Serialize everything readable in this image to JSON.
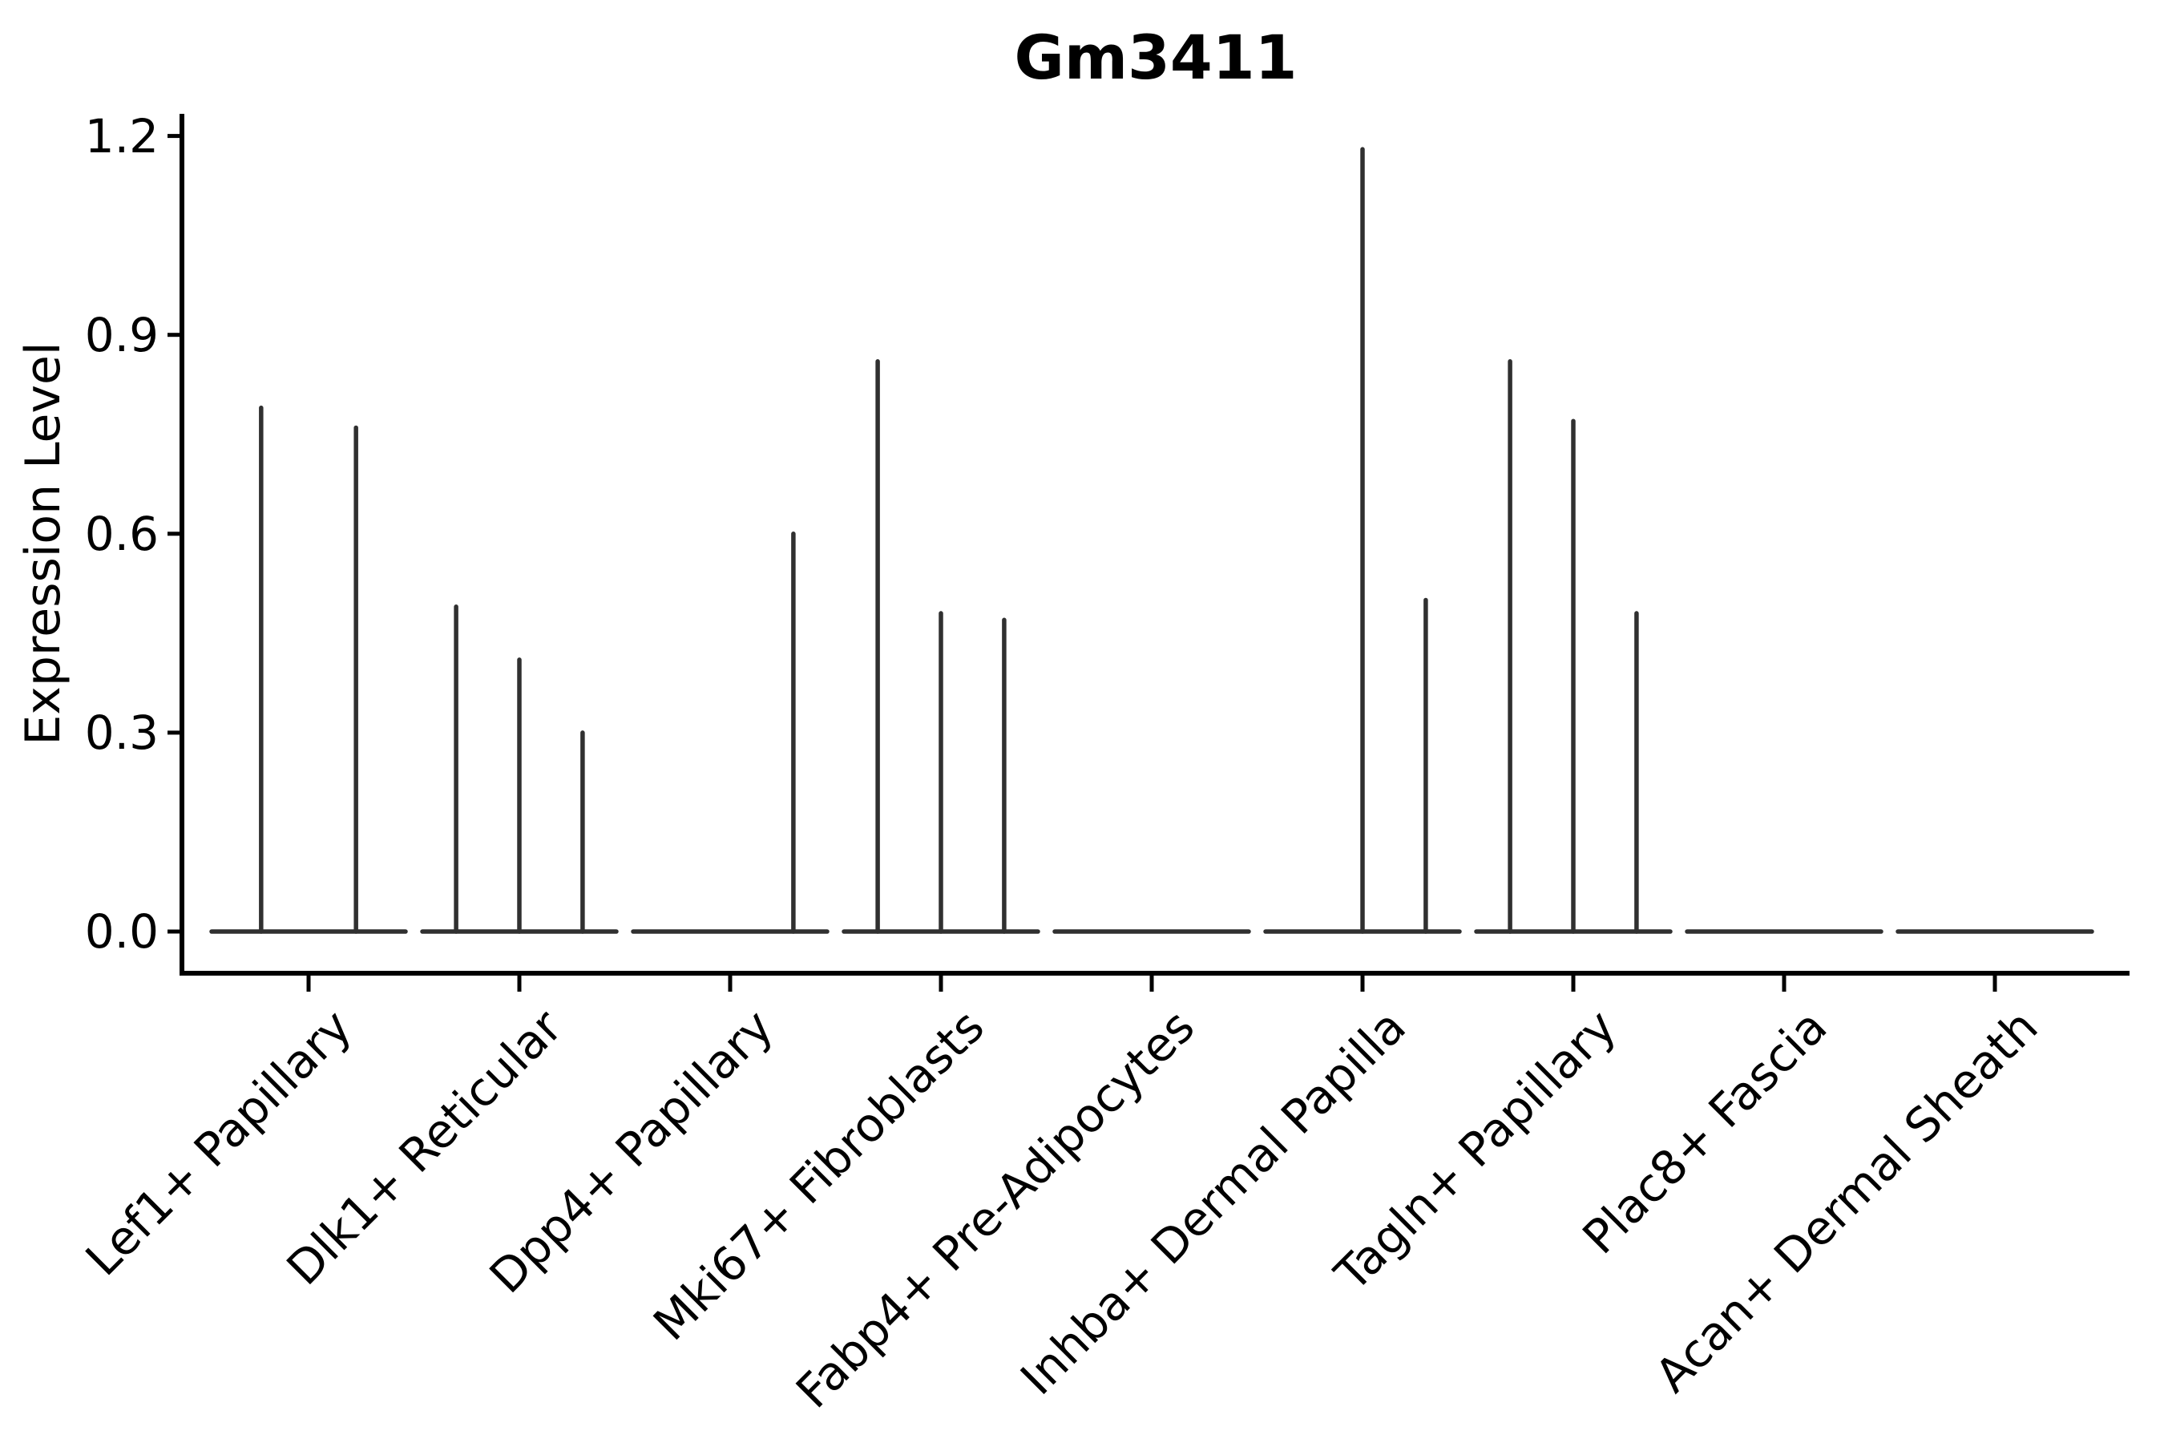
{
  "figure": {
    "background": "#ffffff"
  },
  "chart_data": {
    "type": "violin",
    "title": "Gm3411",
    "ylabel": "Expression Level",
    "xlabel": "",
    "ylim": [
      -0.06,
      1.23
    ],
    "yticks": [
      0.0,
      0.3,
      0.6,
      0.9,
      1.2
    ],
    "ytick_labels": [
      "0.0",
      "0.3",
      "0.6",
      "0.9",
      "1.2"
    ],
    "xtick_rotation": 45,
    "grid": false,
    "legend": null,
    "colors": {
      "violin_line": "#303030",
      "axis": "#000000",
      "text": "#000000"
    },
    "note": "Each cell type shows a flat density line at expression 0; thin vertical spikes mark sub-violins reaching the listed peak expression level.",
    "categories": [
      {
        "label": "Lef1+ Papillary",
        "violins": [
          {
            "offset": -0.225,
            "peak": 0.79
          },
          {
            "offset": 0.225,
            "peak": 0.76
          }
        ]
      },
      {
        "label": "Dlk1+ Reticular",
        "violins": [
          {
            "offset": -0.3,
            "peak": 0.49
          },
          {
            "offset": 0.0,
            "peak": 0.41
          },
          {
            "offset": 0.3,
            "peak": 0.3
          }
        ]
      },
      {
        "label": "Dpp4+ Papillary",
        "violins": [
          {
            "offset": 0.3,
            "peak": 0.6
          }
        ]
      },
      {
        "label": "Mki67+ Fibroblasts",
        "violins": [
          {
            "offset": -0.3,
            "peak": 0.86
          },
          {
            "offset": 0.0,
            "peak": 0.48
          },
          {
            "offset": 0.3,
            "peak": 0.47
          }
        ]
      },
      {
        "label": "Fabp4+ Pre-Adipocytes",
        "violins": []
      },
      {
        "label": "Inhba+ Dermal Papilla",
        "violins": [
          {
            "offset": 0.0,
            "peak": 1.18
          },
          {
            "offset": 0.3,
            "peak": 0.5
          }
        ]
      },
      {
        "label": "Tagln+ Papillary",
        "violins": [
          {
            "offset": -0.3,
            "peak": 0.86
          },
          {
            "offset": 0.0,
            "peak": 0.77
          },
          {
            "offset": 0.3,
            "peak": 0.48
          }
        ]
      },
      {
        "label": "Plac8+ Fascia",
        "violins": []
      },
      {
        "label": "Acan+ Dermal Sheath",
        "violins": []
      }
    ]
  }
}
